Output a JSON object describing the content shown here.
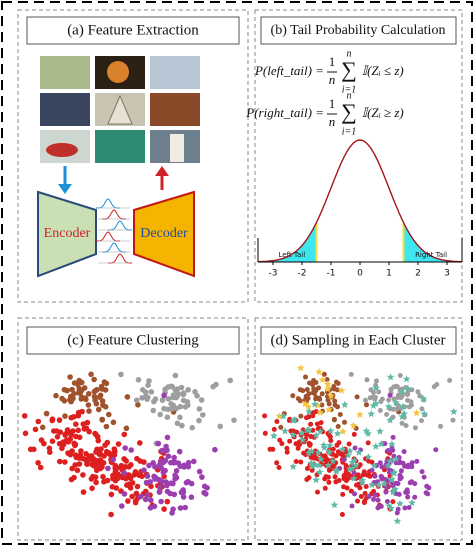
{
  "panels": [
    {
      "title": "(a) Feature Extraction",
      "encoder": "Encoder",
      "decoder": "Decoder"
    },
    {
      "title": "(b) Tail Probability Calculation",
      "formula_left": {
        "lhs": "P(left_tail) =",
        "frac_num": "1",
        "frac_den": "n",
        "sum_top": "n",
        "sum_symbol": "∑",
        "sum_bottom": "i=1",
        "indicator": "𝕀(Zᵢ ≤ z)"
      },
      "formula_right": {
        "lhs": "P(right_tail) =",
        "frac_num": "1",
        "frac_den": "n",
        "sum_top": "n",
        "sum_symbol": "∑",
        "sum_bottom": "i=1",
        "indicator": "𝕀(Zᵢ ≥ z)"
      },
      "axis_ticks": [
        -3,
        -2,
        -1,
        0,
        1,
        2,
        3
      ],
      "left_tail_label": "Left Tail",
      "right_tail_label": "Right Tail"
    },
    {
      "title": "(c) Feature Clustering"
    },
    {
      "title": "(d) Sampling in Each Cluster"
    }
  ]
}
